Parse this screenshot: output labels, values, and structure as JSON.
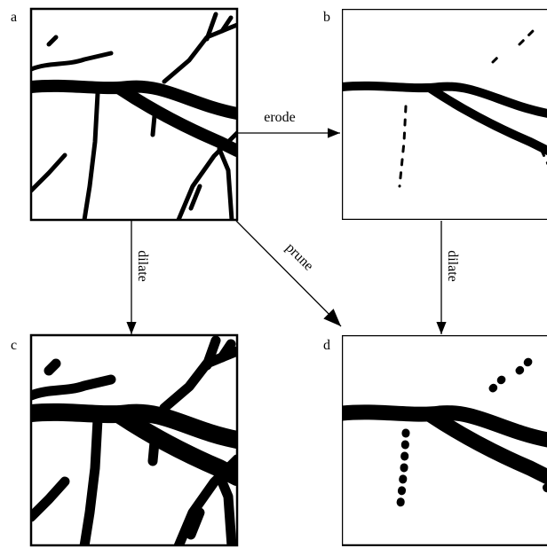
{
  "panels": [
    {
      "label": "a"
    },
    {
      "label": "b"
    },
    {
      "label": "c"
    },
    {
      "label": "d"
    }
  ],
  "arrows": [
    {
      "label": "erode"
    },
    {
      "label": "dilate"
    },
    {
      "label": "prune"
    },
    {
      "label": "dilate"
    }
  ]
}
